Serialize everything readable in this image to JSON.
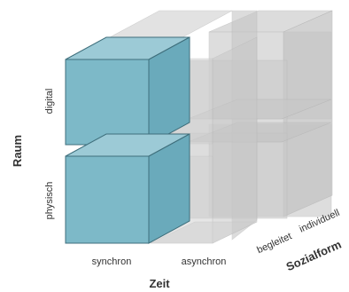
{
  "axes": {
    "raum": {
      "title": "Raum",
      "values": [
        "digital",
        "physisch"
      ]
    },
    "zeit": {
      "title": "Zeit",
      "values": [
        "synchron",
        "asynchron"
      ]
    },
    "sozialform": {
      "title": "Sozialform",
      "values": [
        "begleitet",
        "individuell"
      ]
    }
  },
  "colors": {
    "highlight_front": "#7db9c8",
    "highlight_top": "#9ccad6",
    "highlight_side": "#6aaabb",
    "ghost_fill": "#c9c9c9",
    "ghost_stroke": "#b3b3b3",
    "label_text": "#333333"
  }
}
